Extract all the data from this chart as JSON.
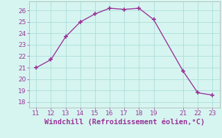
{
  "x": [
    11,
    12,
    13,
    14,
    15,
    16,
    17,
    18,
    19,
    21,
    22,
    23
  ],
  "y": [
    21.0,
    21.7,
    23.7,
    25.0,
    25.7,
    26.2,
    26.1,
    26.2,
    25.2,
    20.7,
    18.8,
    18.6
  ],
  "line_color": "#993399",
  "marker": "+",
  "marker_size": 4,
  "marker_linewidth": 1.2,
  "xlabel": "Windchill (Refroidissement éolien,°C)",
  "xlabel_color": "#993399",
  "ylim": [
    17.5,
    26.8
  ],
  "xlim": [
    10.5,
    23.5
  ],
  "yticks": [
    18,
    19,
    20,
    21,
    22,
    23,
    24,
    25,
    26
  ],
  "xticks": [
    11,
    12,
    13,
    14,
    15,
    16,
    17,
    18,
    19,
    21,
    22,
    23
  ],
  "background_color": "#d6f5f0",
  "grid_color": "#aaddda",
  "tick_color": "#993399",
  "tick_fontsize": 6.5,
  "xlabel_fontsize": 7.5,
  "linewidth": 1.0
}
